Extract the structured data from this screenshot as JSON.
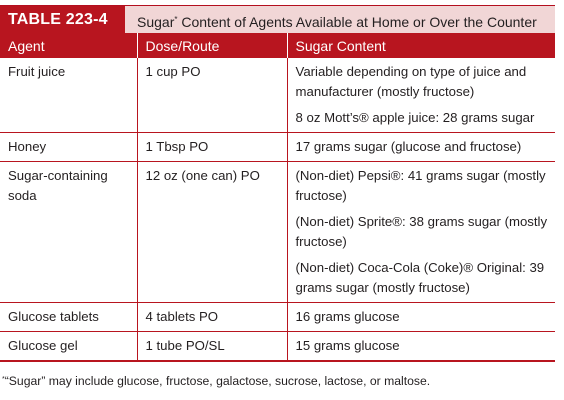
{
  "title": {
    "label": "TABLE 223-4",
    "caption_pre": "Sugar",
    "caption_mark": "*",
    "caption_post": " Content of Agents Available at Home or Over the Counter"
  },
  "columns": [
    "Agent",
    "Dose/Route",
    "Sugar Content"
  ],
  "rows": [
    {
      "agent": "Fruit juice",
      "dose": "1 cup PO",
      "content": [
        "Variable depending on type of juice and manufacturer (mostly fructose)",
        "8 oz Mott’s® apple juice: 28 grams sugar"
      ]
    },
    {
      "agent": "Honey",
      "dose": "1 Tbsp PO",
      "content": [
        "17 grams sugar (glucose and fructose)"
      ]
    },
    {
      "agent": "Sugar-containing soda",
      "dose": "12 oz (one can) PO",
      "content": [
        "(Non-diet) Pepsi®: 41 grams sugar (mostly fructose)",
        "(Non-diet) Sprite®: 38 grams sugar (mostly fructose)",
        "(Non-diet) Coca-Cola (Coke)® Original: 39 grams sugar (mostly fructose)"
      ]
    },
    {
      "agent": "Glucose tablets",
      "dose": "4 tablets PO",
      "content": [
        "16 grams glucose"
      ]
    },
    {
      "agent": "Glucose gel",
      "dose": "1 tube PO/SL",
      "content": [
        "15 grams glucose"
      ]
    }
  ],
  "footnote": {
    "mark": "*",
    "text": "“Sugar” may include glucose, fructose, galactose, sucrose, lactose, or maltose."
  }
}
